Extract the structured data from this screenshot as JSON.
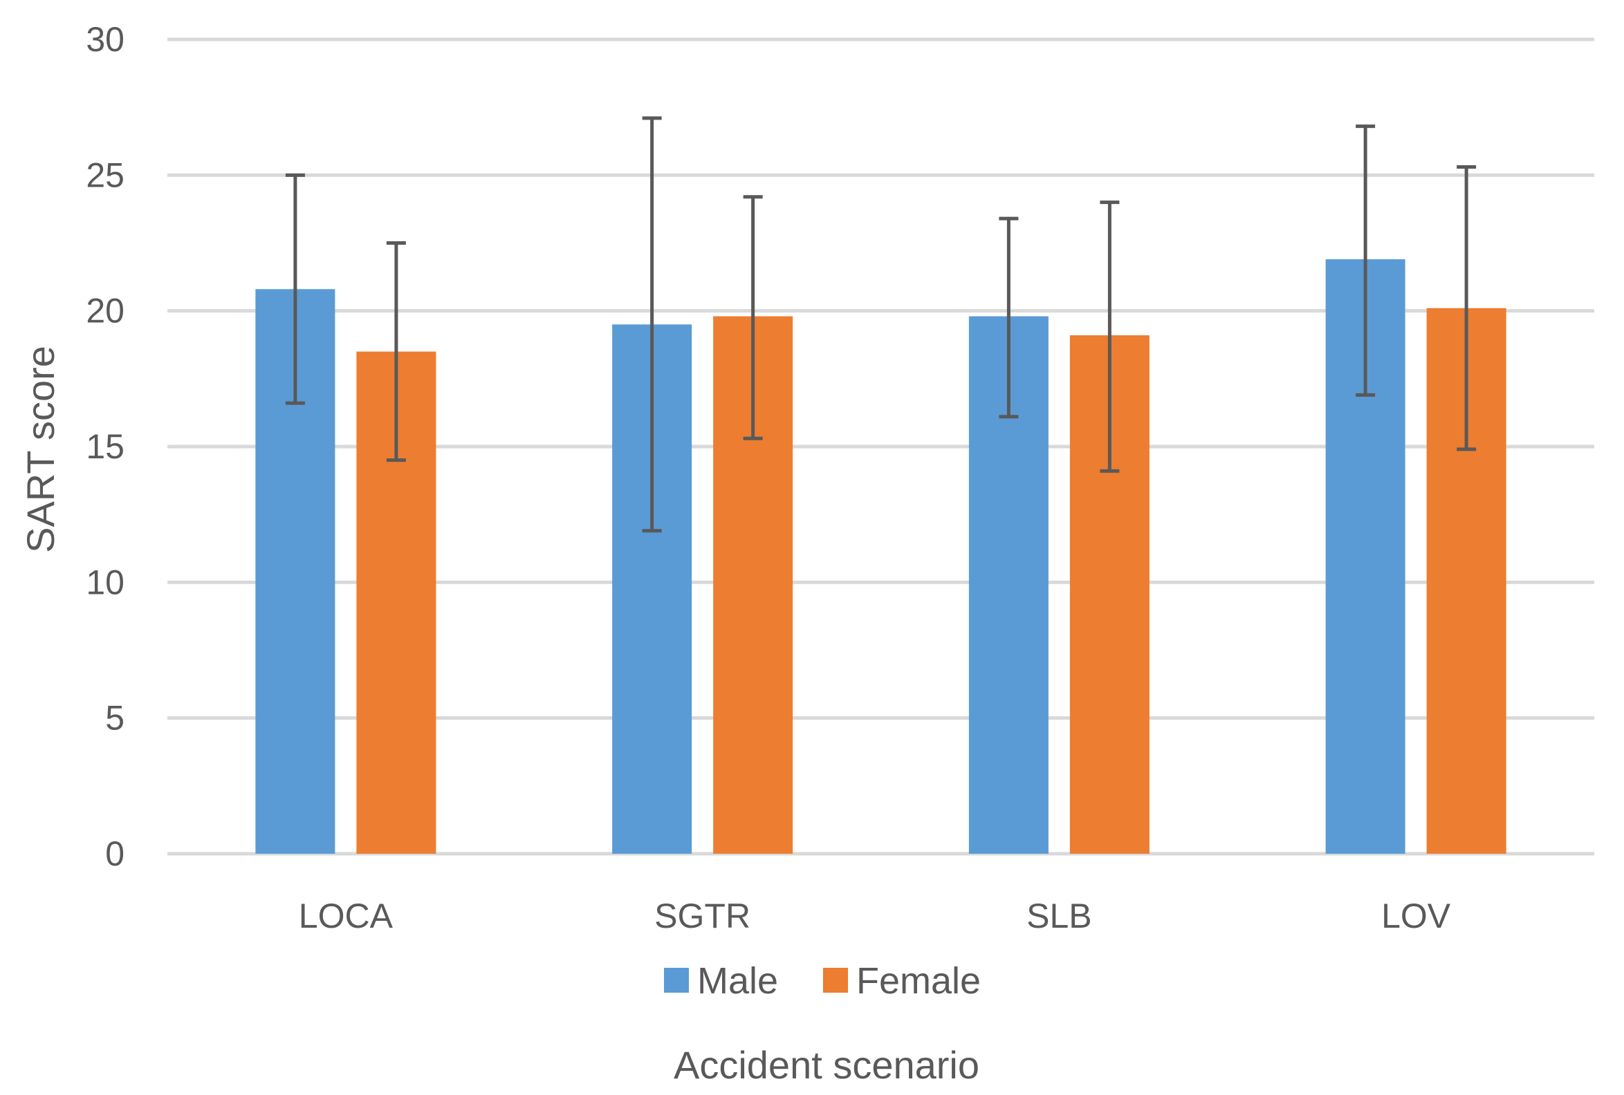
{
  "chart_data": {
    "type": "bar",
    "title": "",
    "xlabel": "Accident scenario",
    "ylabel": "SART score",
    "categories": [
      "LOCA",
      "SGTR",
      "SLB",
      "LOV"
    ],
    "series": [
      {
        "name": "Male",
        "color": "#5b9bd5",
        "values": [
          20.8,
          19.5,
          19.8,
          21.9
        ],
        "error_low": [
          16.6,
          11.9,
          16.1,
          16.9
        ],
        "error_high": [
          25.0,
          27.1,
          23.4,
          26.8
        ]
      },
      {
        "name": "Female",
        "color": "#ed7d31",
        "values": [
          18.5,
          19.8,
          19.1,
          20.1
        ],
        "error_low": [
          14.5,
          15.3,
          14.1,
          14.9
        ],
        "error_high": [
          22.5,
          24.2,
          24.0,
          25.3
        ]
      }
    ],
    "ylim": [
      0,
      30
    ],
    "yticks": [
      0,
      5,
      10,
      15,
      20,
      25,
      30
    ],
    "grid": true,
    "legend_position": "bottom-center"
  }
}
